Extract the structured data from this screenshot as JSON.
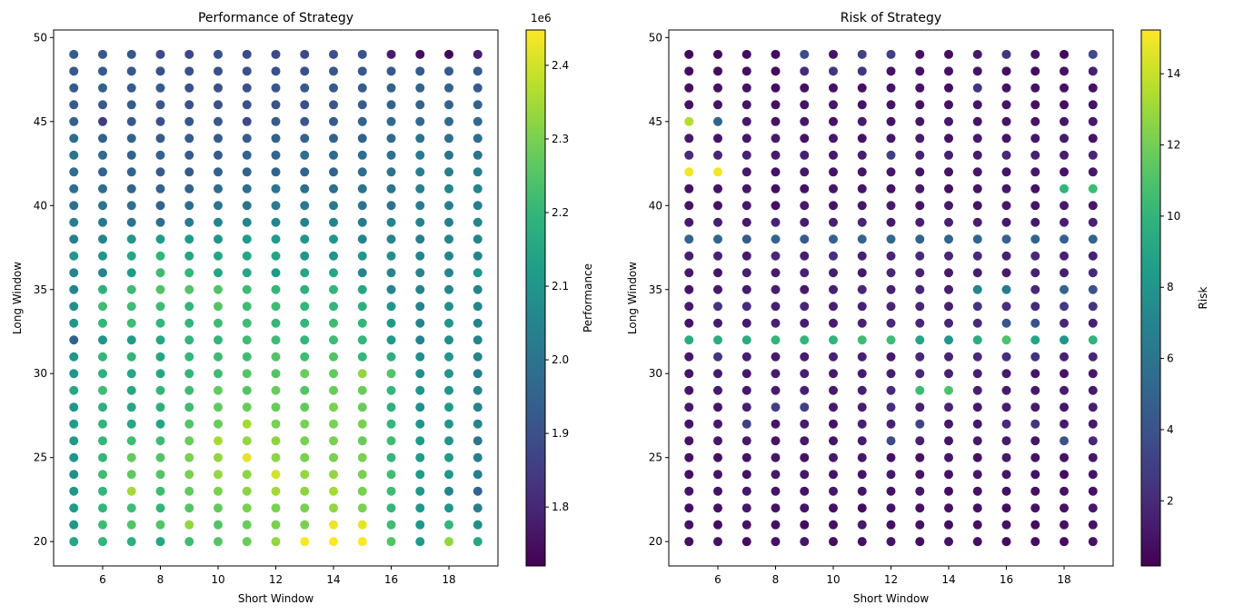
{
  "chart_data": [
    {
      "type": "scatter",
      "title": "Performance of Strategy",
      "xlabel": "Short Window",
      "ylabel": "Long Window",
      "x": [
        5,
        6,
        7,
        8,
        9,
        10,
        11,
        12,
        13,
        14,
        15,
        16,
        17,
        18,
        19
      ],
      "y": [
        20,
        21,
        22,
        23,
        24,
        25,
        26,
        27,
        28,
        29,
        30,
        31,
        32,
        33,
        34,
        35,
        36,
        37,
        38,
        39,
        40,
        41,
        42,
        43,
        44,
        45,
        46,
        47,
        48,
        49
      ],
      "values": [
        [
          2.15,
          2.2,
          2.18,
          2.15,
          2.22,
          2.25,
          2.28,
          2.33,
          2.45,
          2.45,
          2.45,
          2.25,
          2.12,
          2.33,
          2.15
        ],
        [
          2.1,
          2.22,
          2.25,
          2.25,
          2.33,
          2.25,
          2.28,
          2.3,
          2.3,
          2.43,
          2.42,
          2.22,
          2.1,
          2.2,
          2.08
        ],
        [
          2.12,
          2.2,
          2.22,
          2.2,
          2.25,
          2.27,
          2.3,
          2.3,
          2.3,
          2.33,
          2.3,
          2.2,
          2.1,
          2.1,
          2.03
        ],
        [
          2.1,
          2.2,
          2.35,
          2.22,
          2.27,
          2.3,
          2.32,
          2.35,
          2.32,
          2.35,
          2.3,
          2.22,
          2.1,
          2.05,
          1.95
        ],
        [
          2.08,
          2.22,
          2.27,
          2.25,
          2.3,
          2.33,
          2.32,
          2.4,
          2.33,
          2.33,
          2.3,
          2.22,
          2.12,
          2.1,
          2.03
        ],
        [
          2.1,
          2.2,
          2.27,
          2.25,
          2.3,
          2.33,
          2.42,
          2.32,
          2.3,
          2.3,
          2.3,
          2.2,
          2.12,
          2.12,
          2.03
        ],
        [
          2.12,
          2.2,
          2.22,
          2.22,
          2.28,
          2.35,
          2.33,
          2.32,
          2.3,
          2.3,
          2.28,
          2.22,
          2.12,
          2.1,
          2.0
        ],
        [
          2.12,
          2.2,
          2.15,
          2.15,
          2.25,
          2.28,
          2.35,
          2.3,
          2.3,
          2.3,
          2.3,
          2.2,
          2.1,
          2.1,
          2.05
        ],
        [
          2.1,
          2.18,
          2.15,
          2.18,
          2.22,
          2.27,
          2.28,
          2.28,
          2.27,
          2.3,
          2.28,
          2.18,
          2.08,
          2.12,
          2.05
        ],
        [
          2.15,
          2.22,
          2.15,
          2.2,
          2.22,
          2.27,
          2.25,
          2.28,
          2.25,
          2.28,
          2.28,
          2.2,
          2.1,
          2.1,
          2.05
        ],
        [
          2.1,
          2.18,
          2.15,
          2.15,
          2.2,
          2.22,
          2.25,
          2.25,
          2.28,
          2.27,
          2.33,
          2.25,
          2.08,
          2.1,
          2.03
        ],
        [
          2.1,
          2.2,
          2.2,
          2.15,
          2.2,
          2.22,
          2.22,
          2.25,
          2.22,
          2.25,
          2.2,
          2.18,
          2.08,
          2.1,
          2.05
        ],
        [
          1.95,
          2.1,
          2.12,
          2.15,
          2.2,
          2.2,
          2.22,
          2.22,
          2.2,
          2.22,
          2.2,
          2.12,
          2.05,
          2.08,
          2.05
        ],
        [
          2.1,
          2.2,
          2.22,
          2.2,
          2.2,
          2.22,
          2.22,
          2.2,
          2.2,
          2.22,
          2.2,
          2.12,
          2.05,
          2.1,
          2.05
        ],
        [
          2.08,
          2.22,
          2.22,
          2.22,
          2.2,
          2.25,
          2.22,
          2.22,
          2.2,
          2.2,
          2.18,
          2.1,
          2.05,
          2.08,
          2.05
        ],
        [
          2.05,
          2.18,
          2.22,
          2.25,
          2.25,
          2.25,
          2.22,
          2.2,
          2.18,
          2.2,
          2.15,
          2.05,
          2.05,
          2.05,
          2.05
        ],
        [
          2.05,
          2.05,
          2.12,
          2.22,
          2.2,
          2.15,
          2.15,
          2.12,
          2.15,
          2.15,
          2.05,
          2.05,
          2.05,
          2.05,
          2.1
        ],
        [
          2.1,
          2.1,
          2.15,
          2.2,
          2.15,
          2.15,
          2.15,
          2.15,
          2.1,
          2.1,
          2.1,
          2.08,
          2.05,
          2.05,
          2.05
        ],
        [
          2.03,
          2.05,
          2.1,
          2.12,
          2.12,
          2.1,
          2.12,
          2.12,
          2.1,
          2.1,
          2.05,
          2.05,
          2.03,
          2.05,
          2.05
        ],
        [
          2.03,
          2.02,
          2.0,
          1.98,
          2.02,
          2.05,
          2.05,
          2.05,
          2.05,
          2.05,
          2.02,
          2.05,
          2.05,
          2.03,
          2.05
        ],
        [
          1.98,
          2.0,
          1.98,
          1.95,
          1.98,
          2.0,
          2.0,
          2.02,
          2.02,
          2.02,
          2.0,
          2.0,
          2.03,
          2.03,
          2.03
        ],
        [
          1.98,
          1.98,
          1.95,
          1.95,
          1.95,
          1.98,
          1.98,
          2.0,
          1.98,
          1.98,
          2.0,
          2.0,
          2.03,
          2.05,
          2.05
        ],
        [
          1.98,
          1.95,
          1.95,
          1.93,
          1.93,
          1.95,
          1.95,
          1.95,
          1.95,
          1.95,
          1.98,
          2.0,
          2.03,
          2.03,
          2.03
        ],
        [
          2.0,
          1.97,
          1.95,
          1.95,
          1.93,
          1.93,
          1.95,
          1.95,
          1.98,
          1.97,
          1.98,
          2.0,
          2.02,
          2.0,
          2.0
        ],
        [
          1.98,
          1.95,
          1.95,
          1.93,
          1.93,
          1.93,
          1.93,
          1.95,
          1.95,
          1.95,
          1.95,
          1.97,
          2.0,
          1.98,
          1.98
        ],
        [
          1.95,
          1.85,
          1.92,
          1.9,
          1.92,
          1.92,
          1.88,
          1.93,
          1.92,
          1.93,
          1.95,
          1.97,
          1.97,
          1.97,
          1.97
        ],
        [
          1.93,
          1.93,
          1.93,
          1.92,
          1.9,
          1.9,
          1.9,
          1.9,
          1.9,
          1.92,
          1.93,
          1.95,
          1.95,
          1.95,
          1.95
        ],
        [
          1.93,
          1.95,
          1.93,
          1.93,
          1.9,
          1.9,
          1.9,
          1.92,
          1.93,
          1.93,
          1.93,
          1.95,
          1.95,
          1.95,
          1.93
        ],
        [
          1.92,
          1.93,
          1.92,
          1.9,
          1.9,
          1.9,
          1.9,
          1.9,
          1.9,
          1.92,
          1.92,
          1.92,
          1.93,
          1.93,
          1.93
        ],
        [
          1.93,
          1.92,
          1.92,
          1.88,
          1.88,
          1.9,
          1.88,
          1.88,
          1.88,
          1.9,
          1.9,
          1.78,
          1.75,
          1.73,
          1.78
        ]
      ],
      "xlim": [
        4.3,
        19.7
      ],
      "ylim": [
        18.55,
        50.45
      ],
      "xticks": [
        6,
        8,
        10,
        12,
        14,
        16,
        18
      ],
      "yticks": [
        20,
        25,
        30,
        35,
        40,
        45,
        50
      ],
      "colormap": "viridis",
      "colorbar": {
        "label": "Performance",
        "lim": [
          1.72,
          2.448
        ],
        "ticks": [
          1.8,
          1.9,
          {
            "value": 2,
            "label": "2.0"
          },
          2.1,
          2.2,
          2.3,
          2.4
        ],
        "offset_label": "1e6"
      }
    },
    {
      "type": "scatter",
      "title": "Risk of Strategy",
      "xlabel": "Short Window",
      "ylabel": "Long Window",
      "x": [
        5,
        6,
        7,
        8,
        9,
        10,
        11,
        12,
        13,
        14,
        15,
        16,
        17,
        18,
        19
      ],
      "y": [
        20,
        21,
        22,
        23,
        24,
        25,
        26,
        27,
        28,
        29,
        30,
        31,
        32,
        33,
        34,
        35,
        36,
        37,
        38,
        39,
        40,
        41,
        42,
        43,
        44,
        45,
        46,
        47,
        48,
        49
      ],
      "values": [
        [
          0.8,
          0.9,
          0.7,
          0.9,
          1.1,
          0.6,
          0.8,
          1.0,
          0.7,
          0.9,
          0.8,
          0.6,
          0.7,
          0.7,
          0.9
        ],
        [
          0.9,
          0.7,
          1.0,
          0.8,
          0.7,
          0.9,
          1.2,
          0.8,
          0.9,
          0.7,
          0.8,
          0.9,
          0.7,
          0.8,
          1.0
        ],
        [
          0.7,
          0.8,
          1.1,
          0.9,
          1.0,
          0.8,
          0.7,
          1.0,
          0.8,
          0.9,
          0.8,
          0.7,
          0.9,
          0.9,
          1.2
        ],
        [
          1.0,
          0.9,
          1.2,
          1.0,
          0.9,
          1.1,
          1.0,
          0.9,
          1.1,
          0.8,
          0.9,
          0.8,
          0.8,
          0.9,
          0.9
        ],
        [
          0.8,
          1.0,
          0.9,
          1.2,
          1.1,
          0.9,
          1.0,
          1.2,
          1.0,
          1.0,
          1.1,
          1.0,
          0.9,
          0.7,
          1.0
        ],
        [
          0.9,
          0.8,
          1.0,
          1.1,
          0.9,
          1.2,
          1.1,
          1.0,
          0.9,
          1.1,
          0.8,
          1.2,
          1.0,
          0.9,
          1.1
        ],
        [
          0.9,
          1.1,
          1.3,
          1.0,
          1.2,
          1.0,
          1.3,
          3.5,
          1.5,
          1.0,
          1.2,
          1.3,
          1.1,
          4.0,
          1.8
        ],
        [
          1.0,
          1.2,
          3.0,
          1.1,
          1.4,
          0.9,
          1.5,
          1.6,
          3.2,
          1.2,
          1.1,
          2.0,
          2.5,
          1.3,
          1.2
        ],
        [
          1.2,
          1.0,
          1.5,
          3.0,
          3.0,
          1.3,
          1.4,
          2.2,
          1.5,
          1.7,
          1.2,
          1.4,
          1.3,
          1.1,
          1.5
        ],
        [
          1.0,
          1.3,
          1.2,
          1.4,
          1.6,
          1.2,
          1.5,
          2.0,
          10.5,
          11.0,
          1.5,
          1.3,
          1.2,
          1.4,
          1.3
        ],
        [
          0.9,
          1.2,
          1.1,
          1.3,
          1.5,
          1.2,
          1.3,
          1.4,
          1.7,
          1.5,
          1.4,
          1.2,
          1.1,
          1.0,
          1.2
        ],
        [
          1.2,
          2.5,
          1.5,
          1.3,
          1.4,
          1.6,
          1.5,
          1.3,
          1.8,
          1.7,
          2.0,
          2.2,
          2.3,
          1.5,
          1.8
        ],
        [
          9.5,
          9.5,
          9.5,
          10.0,
          10.0,
          10.0,
          10.5,
          10.5,
          9.0,
          8.0,
          9.5,
          11.0,
          9.0,
          8.0,
          10.0
        ],
        [
          1.0,
          1.3,
          1.2,
          1.5,
          1.4,
          1.3,
          1.6,
          2.0,
          1.8,
          1.7,
          2.0,
          4.0,
          4.0,
          1.8,
          1.5
        ],
        [
          1.3,
          2.5,
          2.0,
          1.5,
          1.8,
          1.5,
          1.6,
          1.7,
          1.8,
          1.5,
          2.5,
          2.2,
          2.0,
          2.8,
          2.5
        ],
        [
          1.0,
          1.2,
          1.3,
          1.4,
          1.2,
          1.5,
          1.8,
          1.6,
          1.7,
          1.5,
          7.0,
          6.5,
          1.8,
          5.0,
          4.0
        ],
        [
          1.2,
          1.0,
          1.5,
          1.3,
          1.6,
          1.4,
          1.2,
          1.8,
          1.5,
          1.2,
          1.4,
          1.3,
          1.6,
          1.5,
          2.0
        ],
        [
          1.4,
          1.6,
          1.3,
          1.8,
          1.5,
          2.2,
          1.5,
          1.7,
          2.0,
          1.8,
          2.0,
          1.6,
          1.8,
          1.5,
          1.6
        ],
        [
          5.0,
          5.0,
          4.5,
          5.0,
          4.5,
          4.8,
          5.0,
          5.2,
          5.0,
          5.0,
          5.0,
          4.8,
          5.0,
          4.8,
          5.0
        ],
        [
          1.3,
          1.5,
          1.2,
          1.6,
          1.4,
          1.5,
          1.7,
          1.3,
          1.5,
          1.6,
          1.4,
          1.2,
          1.3,
          1.5,
          1.6
        ],
        [
          1.0,
          0.9,
          1.1,
          0.8,
          1.2,
          1.0,
          1.1,
          1.3,
          1.0,
          1.2,
          0.9,
          1.1,
          1.0,
          1.2,
          1.1
        ],
        [
          0.9,
          1.0,
          1.1,
          0.8,
          0.9,
          1.1,
          1.0,
          0.9,
          1.2,
          0.8,
          1.0,
          1.1,
          0.9,
          10.0,
          10.5
        ],
        [
          15.0,
          15.0,
          1.2,
          1.0,
          1.1,
          0.9,
          1.0,
          1.1,
          1.0,
          0.9,
          1.1,
          1.0,
          1.2,
          1.0,
          1.1
        ],
        [
          2.0,
          1.8,
          1.6,
          1.3,
          1.5,
          1.2,
          1.4,
          3.0,
          1.6,
          1.5,
          1.3,
          1.8,
          1.5,
          1.4,
          1.8
        ],
        [
          1.2,
          1.0,
          1.1,
          1.3,
          1.0,
          1.2,
          0.9,
          1.1,
          1.3,
          1.0,
          1.2,
          1.0,
          1.1,
          1.3,
          1.0
        ],
        [
          13.5,
          5.0,
          1.2,
          1.0,
          1.1,
          0.9,
          1.3,
          1.0,
          1.1,
          1.2,
          1.0,
          0.9,
          1.0,
          1.1,
          1.2
        ],
        [
          0.8,
          0.9,
          1.0,
          0.8,
          1.0,
          1.1,
          0.9,
          1.0,
          0.8,
          0.9,
          1.0,
          1.0,
          0.9,
          0.8,
          1.0
        ],
        [
          0.7,
          0.8,
          0.9,
          0.7,
          0.8,
          0.9,
          0.8,
          1.0,
          0.9,
          0.8,
          2.5,
          1.0,
          0.9,
          0.8,
          0.9
        ],
        [
          0.6,
          0.7,
          0.8,
          0.6,
          2.0,
          2.5,
          2.5,
          0.9,
          0.8,
          0.9,
          1.0,
          0.8,
          0.7,
          0.9,
          1.5
        ],
        [
          0.5,
          0.6,
          0.7,
          0.6,
          3.5,
          1.0,
          3.0,
          3.0,
          0.8,
          0.7,
          1.2,
          2.5,
          0.9,
          0.6,
          3.5
        ]
      ],
      "xlim": [
        4.3,
        19.7
      ],
      "ylim": [
        18.55,
        50.45
      ],
      "xticks": [
        6,
        8,
        10,
        12,
        14,
        16,
        18
      ],
      "yticks": [
        20,
        25,
        30,
        35,
        40,
        45,
        50
      ],
      "colormap": "viridis",
      "colorbar": {
        "label": "Risk",
        "lim": [
          0.17,
          15.23
        ],
        "ticks": [
          2,
          4,
          6,
          8,
          10,
          12,
          14
        ]
      }
    }
  ]
}
